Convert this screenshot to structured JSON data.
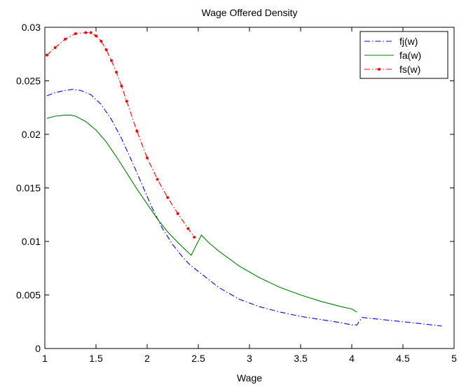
{
  "chart_data": {
    "type": "line",
    "title": "Wage Offered Density",
    "xlabel": "Wage",
    "ylabel": "",
    "xlim": [
      1,
      5
    ],
    "ylim": [
      0,
      0.03
    ],
    "xticks": [
      1,
      1.5,
      2,
      2.5,
      3,
      3.5,
      4,
      4.5,
      5
    ],
    "xtick_labels": [
      "1",
      "1.5",
      "2",
      "2.5",
      "3",
      "3.5",
      "4",
      "4.5",
      "5"
    ],
    "yticks": [
      0,
      0.005,
      0.01,
      0.015,
      0.02,
      0.025,
      0.03
    ],
    "ytick_labels": [
      "0",
      "0.005",
      "0.01",
      "0.015",
      "0.02",
      "0.025",
      "0.03"
    ],
    "grid": false,
    "legend_position": "top-right",
    "series": [
      {
        "name": "fj(w)",
        "color": "#0000ff",
        "style": "dash-dot",
        "x": [
          1.02,
          1.1,
          1.2,
          1.27,
          1.35,
          1.45,
          1.55,
          1.65,
          1.75,
          1.85,
          1.95,
          2.05,
          2.15,
          2.25,
          2.35,
          2.42,
          2.5,
          2.7,
          2.9,
          3.1,
          3.3,
          3.5,
          3.7,
          3.9,
          4.0,
          4.05,
          4.1,
          4.2,
          4.4,
          4.6,
          4.88
        ],
        "y": [
          0.0236,
          0.0239,
          0.0241,
          0.0242,
          0.0241,
          0.0237,
          0.0228,
          0.0214,
          0.0196,
          0.0175,
          0.0153,
          0.0131,
          0.0112,
          0.0097,
          0.0085,
          0.0078,
          0.0072,
          0.0057,
          0.0046,
          0.0039,
          0.0034,
          0.003,
          0.0027,
          0.0024,
          0.0022,
          0.0022,
          0.0029,
          0.0028,
          0.0026,
          0.0024,
          0.0021
        ]
      },
      {
        "name": "fa(w)",
        "color": "#008000",
        "style": "solid",
        "x": [
          1.02,
          1.1,
          1.2,
          1.25,
          1.3,
          1.4,
          1.5,
          1.6,
          1.7,
          1.8,
          1.9,
          2.0,
          2.1,
          2.2,
          2.3,
          2.43,
          2.53,
          2.6,
          2.7,
          2.9,
          3.1,
          3.3,
          3.5,
          3.7,
          3.9,
          4.0,
          4.05
        ],
        "y": [
          0.0215,
          0.0217,
          0.0218,
          0.0218,
          0.0217,
          0.0212,
          0.0204,
          0.0193,
          0.0179,
          0.0164,
          0.0149,
          0.0135,
          0.0121,
          0.0109,
          0.0099,
          0.0087,
          0.0106,
          0.0099,
          0.0091,
          0.0077,
          0.0066,
          0.0057,
          0.005,
          0.0044,
          0.0039,
          0.0037,
          0.0034
        ]
      },
      {
        "name": "fs(w)",
        "color": "#ff0000",
        "style": "dash-dot-marker",
        "x": [
          1.02,
          1.1,
          1.2,
          1.3,
          1.4,
          1.45,
          1.5,
          1.55,
          1.6,
          1.65,
          1.7,
          1.75,
          1.8,
          1.9,
          2.0,
          2.1,
          2.2,
          2.3,
          2.4,
          2.46
        ],
        "y": [
          0.0274,
          0.0281,
          0.0289,
          0.0294,
          0.0295,
          0.0295,
          0.0292,
          0.0287,
          0.0279,
          0.0269,
          0.0258,
          0.0245,
          0.0231,
          0.0203,
          0.0178,
          0.0158,
          0.0141,
          0.0126,
          0.0112,
          0.0104
        ]
      }
    ]
  }
}
